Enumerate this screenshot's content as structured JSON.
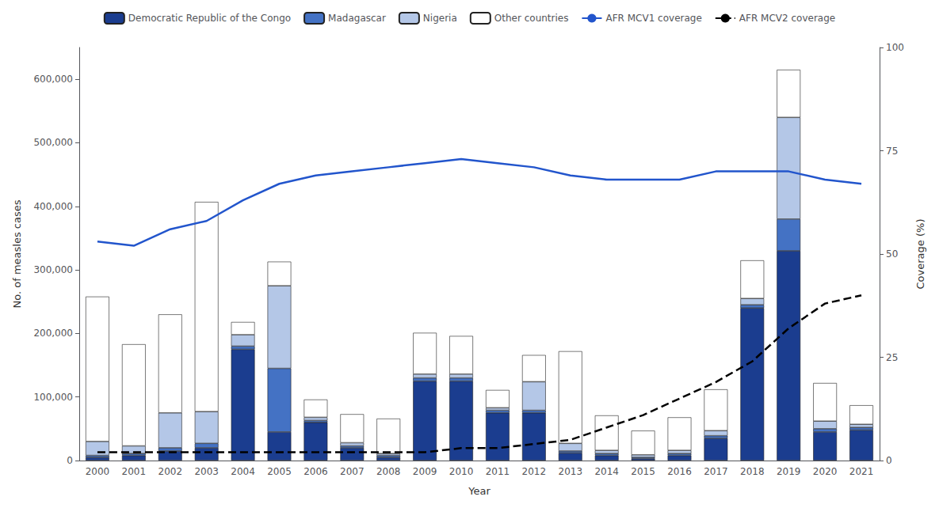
{
  "chart_data": {
    "type": "bar",
    "stacked": true,
    "xlabel": "Year",
    "ylabel": "No. of measles cases",
    "y2label": "Coverage (%)",
    "categories": [
      "2000",
      "2001",
      "2002",
      "2003",
      "2004",
      "2005",
      "2006",
      "2007",
      "2008",
      "2009",
      "2010",
      "2011",
      "2012",
      "2013",
      "2014",
      "2015",
      "2016",
      "2017",
      "2018",
      "2019",
      "2020",
      "2021"
    ],
    "series": [
      {
        "name": "Democratic Republic of the Congo",
        "type": "bar",
        "color": "#1b3d8f",
        "values": [
          5000,
          8000,
          15000,
          20000,
          175000,
          45000,
          60000,
          20000,
          5000,
          125000,
          125000,
          75000,
          75000,
          12000,
          8000,
          3000,
          8000,
          35000,
          240000,
          330000,
          45000,
          48000
        ]
      },
      {
        "name": "Madagascar",
        "type": "bar",
        "color": "#4472c4",
        "values": [
          3000,
          3000,
          5000,
          7000,
          5000,
          100000,
          3000,
          3000,
          3000,
          5000,
          5000,
          4000,
          4000,
          3000,
          3000,
          2000,
          3000,
          4000,
          5000,
          50000,
          5000,
          4000
        ]
      },
      {
        "name": "Nigeria",
        "type": "bar",
        "color": "#b4c7e7",
        "values": [
          22000,
          12000,
          55000,
          50000,
          18000,
          130000,
          5000,
          5000,
          3000,
          6000,
          6000,
          4000,
          45000,
          12000,
          5000,
          4000,
          5000,
          8000,
          10000,
          160000,
          12000,
          5000
        ]
      },
      {
        "name": "Other countries",
        "type": "bar",
        "color": "#ffffff",
        "values": [
          228000,
          160000,
          155000,
          330000,
          20000,
          38000,
          28000,
          45000,
          55000,
          65000,
          60000,
          28000,
          42000,
          145000,
          55000,
          38000,
          52000,
          65000,
          60000,
          75000,
          60000,
          30000
        ]
      },
      {
        "name": "AFR MCV1 coverage",
        "type": "line",
        "axis": "y2",
        "color": "#2255cc",
        "line_style": "solid",
        "values": [
          53,
          52,
          56,
          58,
          63,
          67,
          69,
          70,
          71,
          72,
          73,
          72,
          71,
          69,
          68,
          68,
          68,
          70,
          70,
          70,
          68,
          67
        ]
      },
      {
        "name": "AFR MCV2 coverage",
        "type": "line",
        "axis": "y2",
        "color": "#000000",
        "line_style": "dashed",
        "values": [
          2,
          2,
          2,
          2,
          2,
          2,
          2,
          2,
          2,
          2,
          3,
          3,
          4,
          5,
          8,
          11,
          15,
          19,
          24,
          32,
          38,
          40
        ]
      }
    ],
    "ylim": [
      0,
      650000
    ],
    "yticks": [
      0,
      {
        "value": 100000,
        "label": "100,000"
      },
      {
        "value": 200000,
        "label": "200,000"
      },
      {
        "value": 300000,
        "label": "300,000"
      },
      {
        "value": 400000,
        "label": "400,000"
      },
      {
        "value": 500000,
        "label": "500,000"
      },
      {
        "value": 600000,
        "label": "600,000"
      }
    ],
    "y2lim": [
      0,
      100
    ],
    "y2ticks": [
      0,
      25,
      50,
      75,
      100
    ],
    "legend": "top",
    "grid": false
  }
}
